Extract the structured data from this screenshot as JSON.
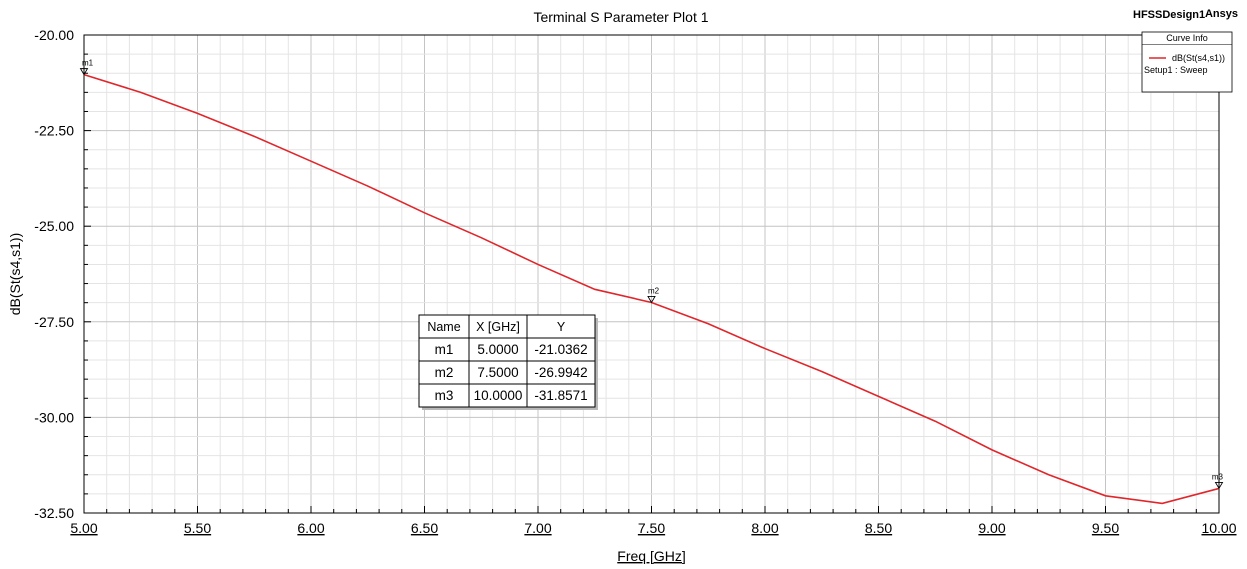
{
  "chart_data": {
    "type": "line",
    "title": "Terminal S Parameter Plot 1",
    "design_name": "HFSSDesign1",
    "brand": "Ansys",
    "xlabel": "Freq [GHz]",
    "ylabel": "dB(St(s4,s1))",
    "xlim": [
      5.0,
      10.0
    ],
    "ylim": [
      -32.5,
      -20.0
    ],
    "x_ticks": [
      "5.00",
      "5.50",
      "6.00",
      "6.50",
      "7.00",
      "7.50",
      "8.00",
      "8.50",
      "9.00",
      "9.50",
      "10.00"
    ],
    "y_ticks": [
      "-20.00",
      "-22.50",
      "-25.00",
      "-27.50",
      "-30.00",
      "-32.50"
    ],
    "grid": true,
    "legend": {
      "title": "Curve Info",
      "placement": "top-right",
      "entries": [
        {
          "name": "dB(St(s4,s1))",
          "detail": "Setup1 : Sweep",
          "color": "#e0262b"
        }
      ]
    },
    "series": [
      {
        "name": "dB(St(s4,s1))",
        "color": "#e0262b",
        "x": [
          5.0,
          5.25,
          5.5,
          5.75,
          6.0,
          6.25,
          6.5,
          6.75,
          7.0,
          7.25,
          7.5,
          7.75,
          8.0,
          8.25,
          8.5,
          8.75,
          9.0,
          9.25,
          9.5,
          9.75,
          10.0
        ],
        "y": [
          -21.0362,
          -21.5,
          -22.05,
          -22.65,
          -23.3,
          -23.95,
          -24.65,
          -25.3,
          -26.0,
          -26.65,
          -26.9942,
          -27.55,
          -28.2,
          -28.8,
          -29.45,
          -30.1,
          -30.85,
          -31.5,
          -32.05,
          -32.25,
          -31.8571
        ]
      }
    ],
    "markers": [
      {
        "name": "m1",
        "x": 5.0,
        "y": -21.0362
      },
      {
        "name": "m2",
        "x": 7.5,
        "y": -26.9942
      },
      {
        "name": "m3",
        "x": 10.0,
        "y": -31.8571
      }
    ],
    "marker_table": {
      "headers": [
        "Name",
        "X [GHz]",
        "Y"
      ],
      "rows": [
        [
          "m1",
          "5.0000",
          "-21.0362"
        ],
        [
          "m2",
          "7.5000",
          "-26.9942"
        ],
        [
          "m3",
          "10.0000",
          "-31.8571"
        ]
      ]
    }
  }
}
